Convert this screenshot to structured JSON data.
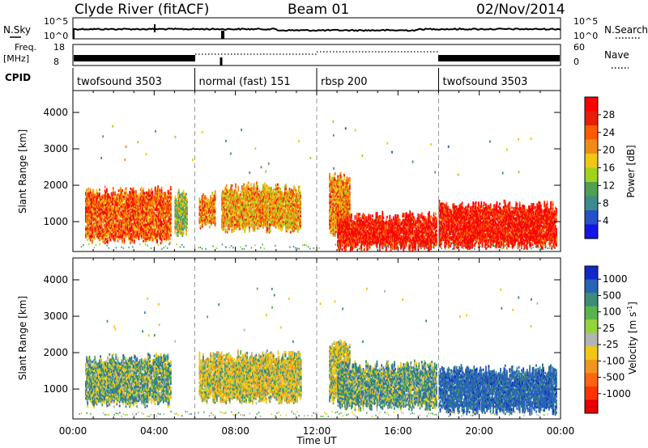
{
  "header": {
    "station": "Clyde River (fitACF)",
    "beam": "Beam 01",
    "date": "02/Nov/2014"
  },
  "strip_labels": {
    "nsky": "N.Sky",
    "freq_top": "Freq.",
    "freq_unit": "[MHz]",
    "cpid": "CPID",
    "nsearch": "N.Search",
    "nave": "Nave"
  },
  "strip_ticks": {
    "nsky_top": "10^5",
    "nsky_bottom": "10^0",
    "nsearch_top": "10^5",
    "nsearch_bottom": "10^0",
    "freq_top": "18",
    "freq_bottom": "8",
    "nave_top": "60",
    "nave_bottom": "0"
  },
  "cpid_segments": [
    {
      "label": "twofsound 3503",
      "start_hour": 0,
      "end_hour": 6
    },
    {
      "label": "normal (fast) 151",
      "start_hour": 6,
      "end_hour": 12
    },
    {
      "label": "rbsp 200",
      "start_hour": 12,
      "end_hour": 18
    },
    {
      "label": "twofsound 3503",
      "start_hour": 18,
      "end_hour": 24
    }
  ],
  "x_axis": {
    "title": "Time UT",
    "ticks": [
      "00:00",
      "04:00",
      "08:00",
      "12:00",
      "16:00",
      "20:00",
      "00:00"
    ],
    "range_hours": [
      0,
      24
    ]
  },
  "panels": [
    {
      "ylabel": "Slant Range [km]",
      "yticks": [
        "1000",
        "2000",
        "3000",
        "4000"
      ],
      "ylim": [
        180,
        4600
      ],
      "colorbar": {
        "title": "Power [dB]",
        "ticks": [
          "4",
          "8",
          "12",
          "16",
          "20",
          "24",
          "28"
        ],
        "range": [
          0,
          32
        ],
        "colors": [
          "#1414e6",
          "#2850c8",
          "#3c8c8c",
          "#50a050",
          "#a0d21e",
          "#f0c814",
          "#f08c14",
          "#ff5a00",
          "#e61e0a",
          "#ff0000"
        ]
      }
    },
    {
      "ylabel": "Slant Range [km]",
      "yticks": [
        "1000",
        "2000",
        "3000",
        "4000"
      ],
      "ylim": [
        180,
        4600
      ],
      "colorbar": {
        "title_main": "Velocity",
        "title_unit": "[m s",
        "title_sup": "-1",
        "title_close": "]",
        "ticks": [
          "1000",
          "500",
          "100",
          "25",
          "-25",
          "-100",
          "-500",
          "-1000"
        ],
        "colors": [
          "#1428c8",
          "#2864b4",
          "#3c8c78",
          "#5ab44b",
          "#96d23c",
          "#b4b4b4",
          "#f0c814",
          "#f0961e",
          "#ff6414",
          "#ff3200",
          "#e60000"
        ]
      }
    }
  ],
  "chart_data": [
    {
      "type": "heatmap",
      "title": "Clyde River (fitACF)",
      "subtitle": "Beam 01",
      "date": "02/Nov/2014",
      "xlabel": "Time UT",
      "ylabel": "Slant Range [km]",
      "x_range_hours": [
        0,
        24
      ],
      "ylim": [
        180,
        4600
      ],
      "quantity": "Power [dB]",
      "color_range": [
        0,
        32
      ],
      "regions": [
        {
          "t0": 0.6,
          "t1": 4.8,
          "r0": 500,
          "r1": 1800,
          "value": 24
        },
        {
          "t0": 5.0,
          "t1": 5.6,
          "r0": 700,
          "r1": 1700,
          "value": 14
        },
        {
          "t0": 6.2,
          "t1": 7.0,
          "r0": 900,
          "r1": 1700,
          "value": 22
        },
        {
          "t0": 7.3,
          "t1": 11.2,
          "r0": 800,
          "r1": 1900,
          "value": 20
        },
        {
          "t0": 12.6,
          "t1": 13.6,
          "r0": 700,
          "r1": 2200,
          "value": 22
        },
        {
          "t0": 13.0,
          "t1": 17.9,
          "r0": 300,
          "r1": 1100,
          "value": 29
        },
        {
          "t0": 18.0,
          "t1": 23.8,
          "r0": 350,
          "r1": 1400,
          "value": 29
        }
      ]
    },
    {
      "type": "heatmap",
      "xlabel": "Time UT",
      "ylabel": "Slant Range [km]",
      "x_range_hours": [
        0,
        24
      ],
      "ylim": [
        180,
        4600
      ],
      "quantity": "Velocity [m s-1]",
      "color_range": [
        -1000,
        1000
      ],
      "regions": [
        {
          "t0": 0.6,
          "t1": 4.8,
          "r0": 600,
          "r1": 1800,
          "value": 80
        },
        {
          "t0": 6.2,
          "t1": 11.2,
          "r0": 700,
          "r1": 1900,
          "value": -120
        },
        {
          "t0": 12.6,
          "t1": 13.6,
          "r0": 700,
          "r1": 2200,
          "value": -80
        },
        {
          "t0": 13.0,
          "t1": 17.9,
          "r0": 500,
          "r1": 1600,
          "value": 120
        },
        {
          "t0": 18.0,
          "t1": 23.8,
          "r0": 400,
          "r1": 1500,
          "value": 500
        }
      ]
    }
  ]
}
